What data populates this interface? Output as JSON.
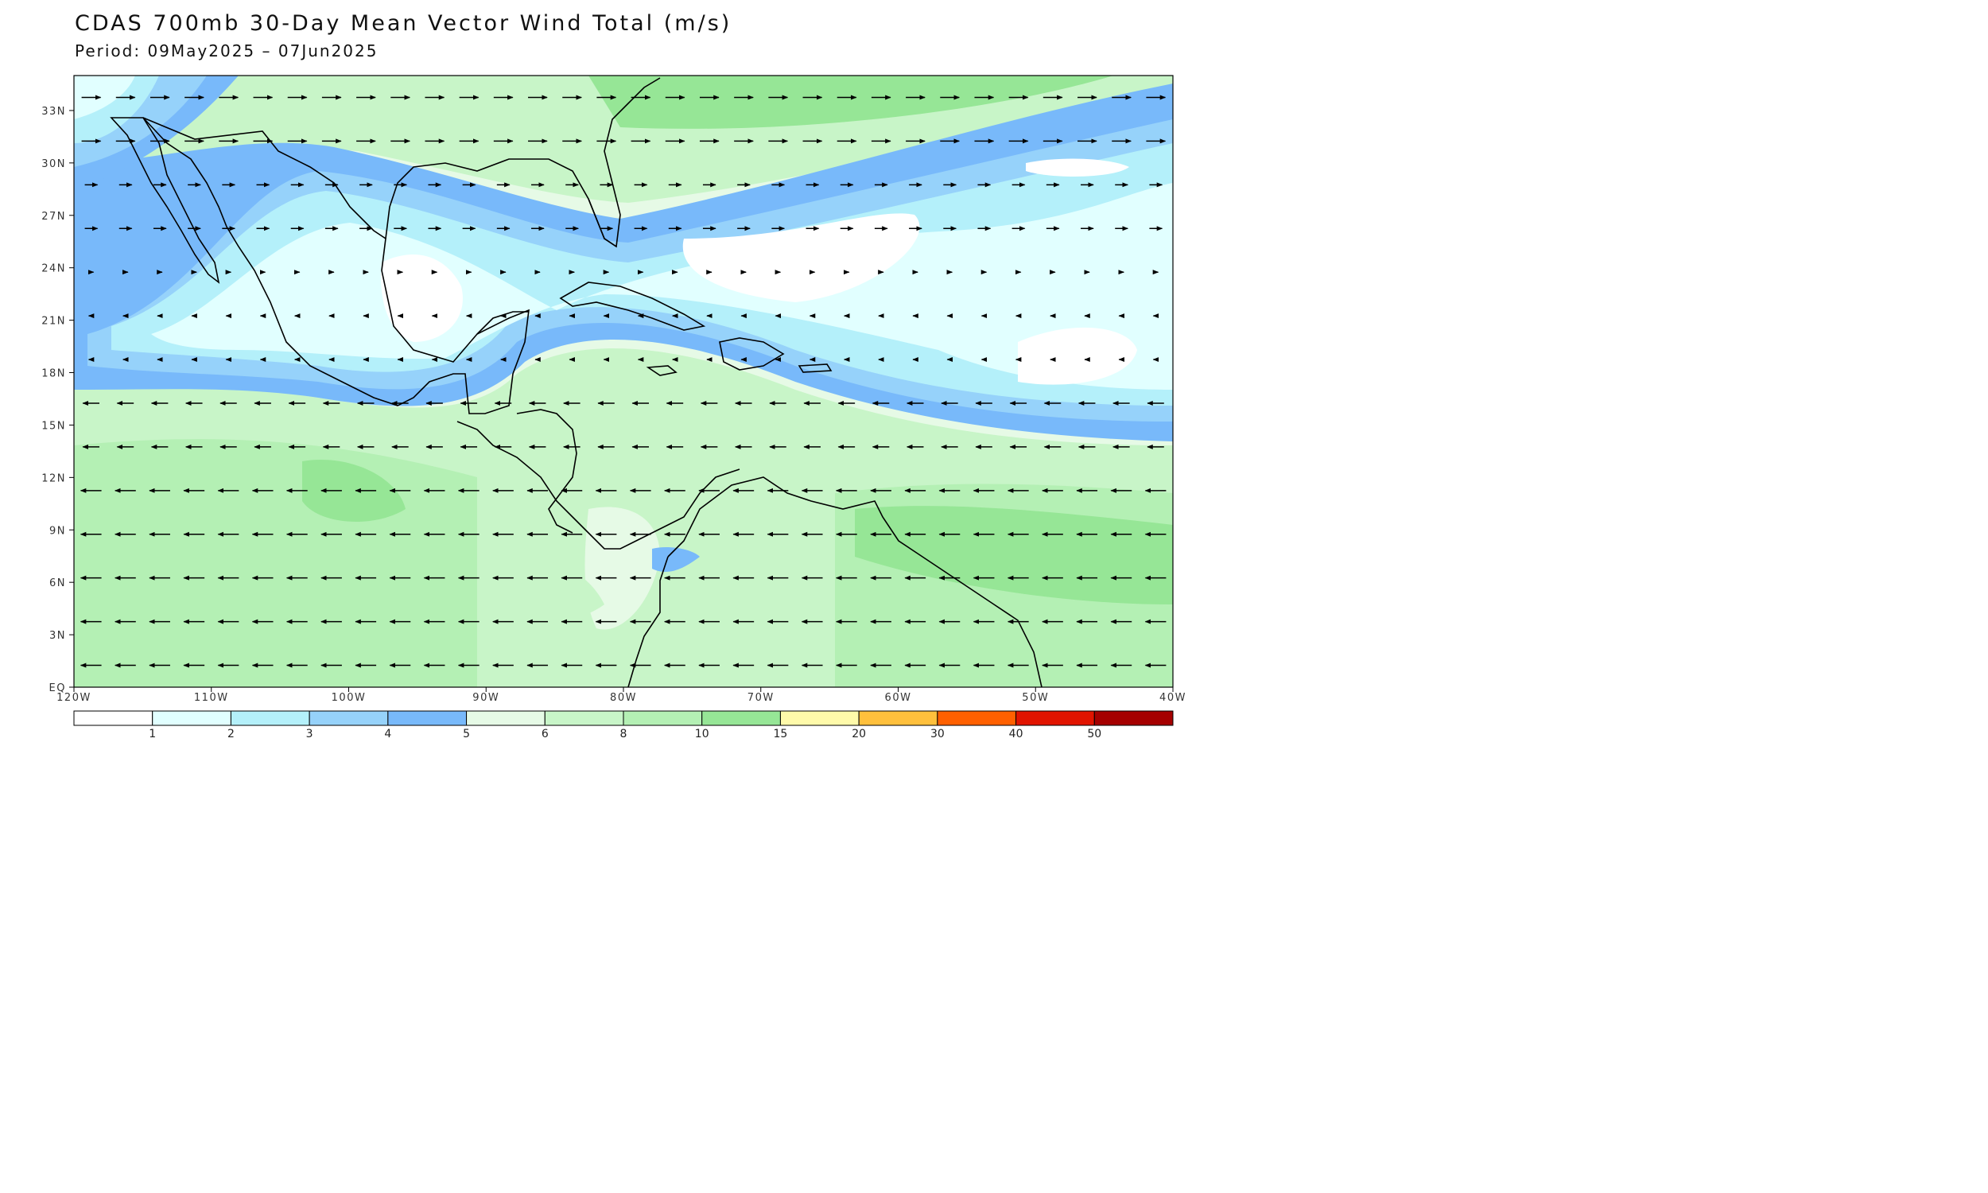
{
  "title": "CDAS 700mb 30-Day Mean Vector Wind Total (m/s)",
  "subtitle": "Period: 09May2025 – 07Jun2025",
  "map": {
    "lon_range": [
      -120,
      -40
    ],
    "lat_range": [
      0,
      35
    ],
    "lat_ticks": [
      "33N",
      "30N",
      "27N",
      "24N",
      "21N",
      "18N",
      "15N",
      "12N",
      "9N",
      "6N",
      "3N",
      "EQ"
    ],
    "lat_values": [
      33,
      30,
      27,
      24,
      21,
      18,
      15,
      12,
      9,
      6,
      3,
      0
    ],
    "lon_ticks": [
      "120W",
      "110W",
      "100W",
      "90W",
      "80W",
      "70W",
      "60W",
      "50W",
      "40W"
    ],
    "lon_values": [
      -120,
      -110,
      -100,
      -90,
      -80,
      -70,
      -60,
      -50,
      -40
    ]
  },
  "colorbar": {
    "labels": [
      "1",
      "2",
      "3",
      "4",
      "5",
      "6",
      "8",
      "10",
      "15",
      "20",
      "30",
      "40",
      "50"
    ],
    "colors": [
      "#ffffff",
      "#e1ffff",
      "#b4f0fa",
      "#96d2fa",
      "#78b9fa",
      "#e6fae6",
      "#c8f5c8",
      "#b4f0b4",
      "#96e696",
      "#fffaaa",
      "#ffc03c",
      "#ff6000",
      "#e11400",
      "#a50000"
    ]
  },
  "wind_field": {
    "description_units": "m/s",
    "easterly_trade_band_lat": [
      0,
      17
    ],
    "westerly_band_lat": [
      25,
      35
    ],
    "weak_wind_core_lat": [
      18,
      26
    ]
  }
}
